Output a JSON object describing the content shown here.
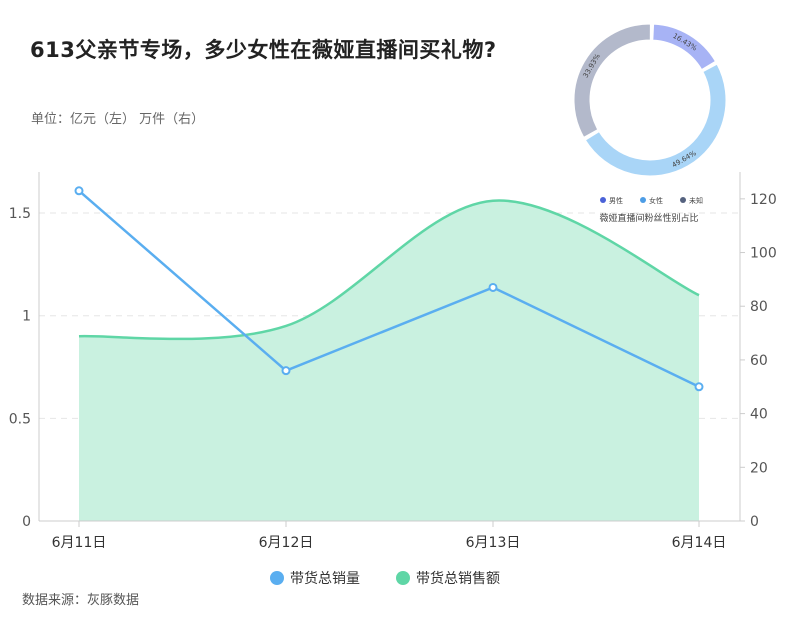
{
  "title": "613父亲节专场，多少女性在薇娅直播间买礼物?",
  "unit_note": "单位：亿元（左） 万件（右）",
  "source": "数据来源：灰豚数据",
  "colors": {
    "line": "#5aaef0",
    "area_stroke": "#5fd6a6",
    "area_fill": "#c9f1e0",
    "male": "#a7b3f5",
    "female": "#a9d5f7",
    "unknown": "#b3b9cb",
    "male_dot": "#4a62d8",
    "female_dot": "#4d9de6",
    "unknown_dot": "#55627f"
  },
  "chart_data": [
    {
      "type": "line",
      "categories": [
        "6月11日",
        "6月12日",
        "6月13日",
        "6月14日"
      ],
      "left_axis": {
        "ylim": [
          0,
          1.7
        ],
        "ticks": [
          "0",
          "0.5",
          "1",
          "1.5"
        ],
        "tick_values": [
          0,
          0.5,
          1,
          1.5
        ]
      },
      "right_axis": {
        "ylim": [
          0,
          130
        ],
        "ticks": [
          "0",
          "20",
          "40",
          "60",
          "80",
          "100",
          "120"
        ],
        "tick_values": [
          0,
          20,
          40,
          60,
          80,
          100,
          120
        ]
      },
      "series": [
        {
          "name": "带货总销量",
          "kind": "line",
          "axis": "right",
          "values": [
            123,
            56,
            87,
            50
          ]
        },
        {
          "name": "带货总销售额",
          "kind": "area",
          "axis": "left",
          "values": [
            0.9,
            0.95,
            1.56,
            1.1
          ]
        }
      ],
      "legend_position": "bottom",
      "grid": true
    },
    {
      "type": "pie",
      "title": "薇娅直播间粉丝性别占比",
      "slices": [
        {
          "name": "男性",
          "value": 16.43,
          "label": "16.43%"
        },
        {
          "name": "女性",
          "value": 49.64,
          "label": "49.64%"
        },
        {
          "name": "未知",
          "value": 33.93,
          "label": "33.93%"
        }
      ],
      "legend_position": "bottom"
    }
  ]
}
